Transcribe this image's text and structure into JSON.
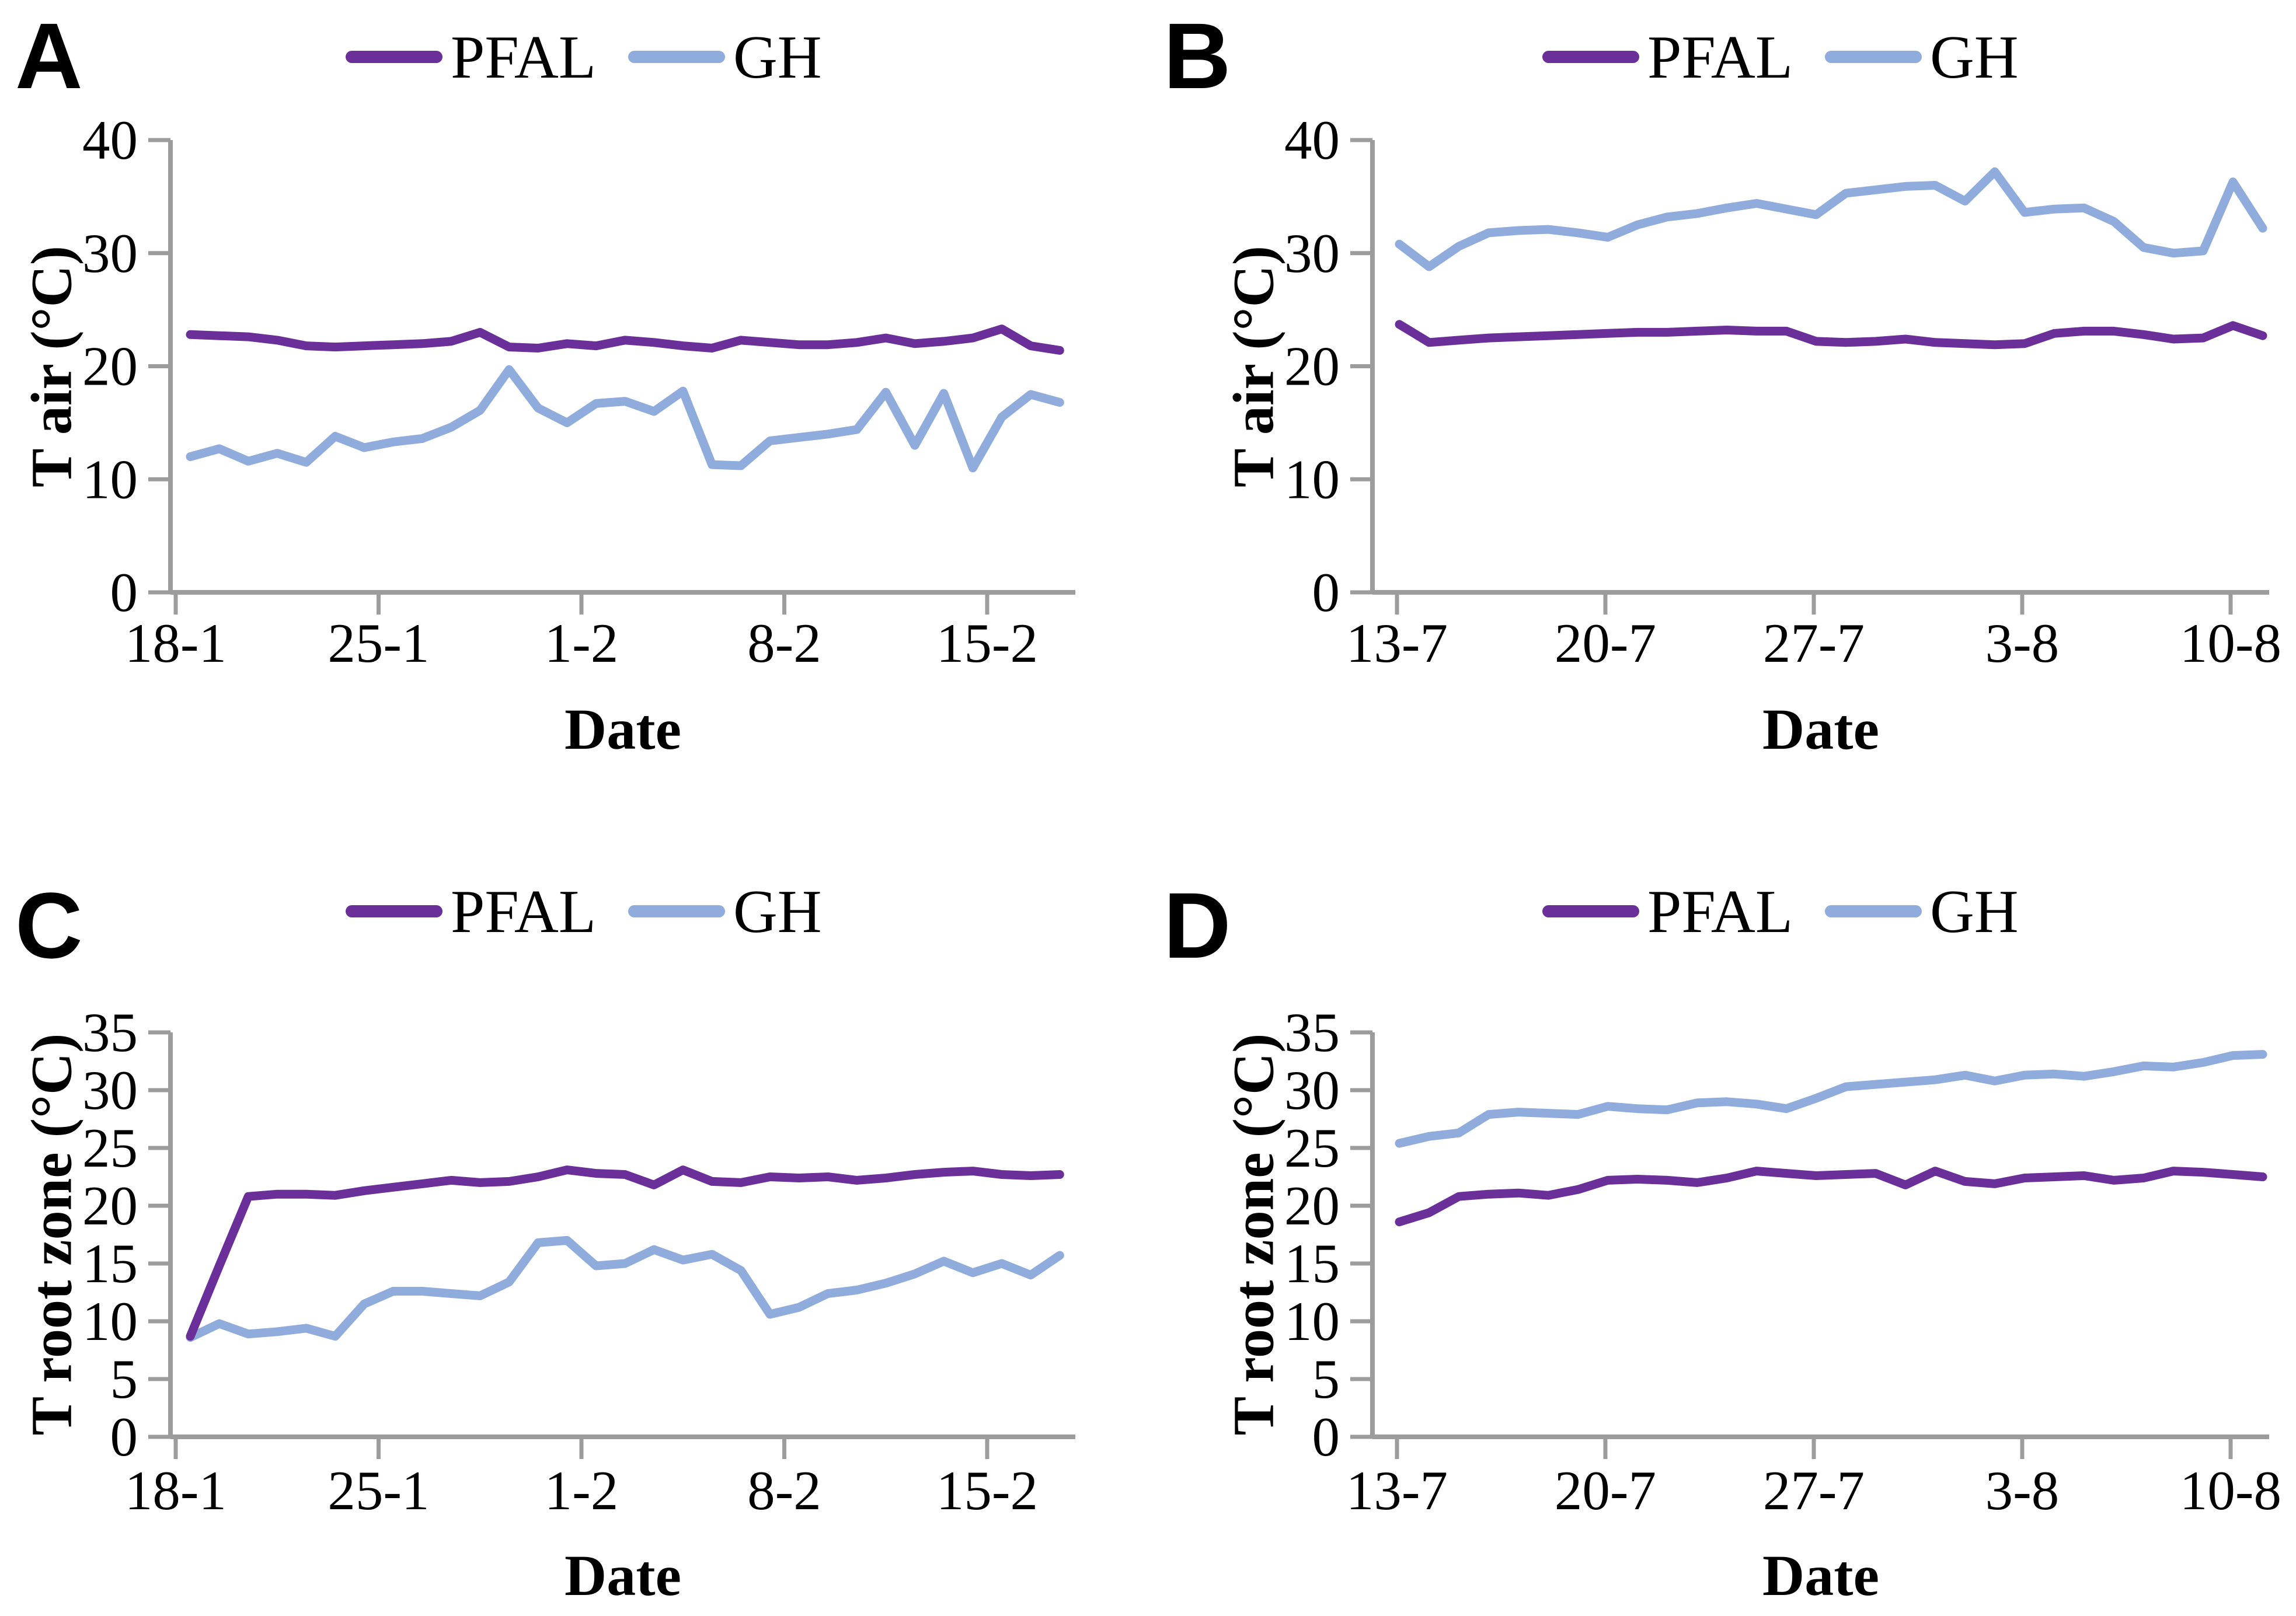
{
  "figure": {
    "axis_color": "#9C9C9C",
    "series_colors": {
      "PFAL": "#6B2F9A",
      "GH": "#8FACDC"
    },
    "panels": [
      {
        "letter": "A",
        "chart_index": 0
      },
      {
        "letter": "B",
        "chart_index": 1
      },
      {
        "letter": "C",
        "chart_index": 2
      },
      {
        "letter": "D",
        "chart_index": 3
      }
    ]
  },
  "chart_data": [
    {
      "type": "line",
      "panel": "A",
      "xlabel": "Date",
      "ylabel": "T air (°C)",
      "ylim": [
        0,
        40
      ],
      "y_ticks": [
        0,
        10,
        20,
        30,
        40
      ],
      "x_tick_labels": [
        "18-1",
        "25-1",
        "1-2",
        "8-2",
        "15-2"
      ],
      "x_tick_indices": [
        0,
        7,
        14,
        21,
        28
      ],
      "grid": false,
      "legend_position": "top",
      "series": [
        {
          "name": "PFAL",
          "color": "#6B2F9A",
          "values": [
            22.8,
            22.7,
            22.6,
            22.3,
            21.8,
            21.7,
            21.8,
            21.9,
            22.0,
            22.2,
            23.0,
            21.7,
            21.6,
            22.0,
            21.8,
            22.3,
            22.1,
            21.8,
            21.6,
            22.3,
            22.1,
            21.9,
            21.9,
            22.1,
            22.5,
            22.0,
            22.2,
            22.5,
            23.3,
            21.8,
            21.4
          ]
        },
        {
          "name": "GH",
          "color": "#8FACDC",
          "values": [
            12.0,
            12.7,
            11.6,
            12.3,
            11.5,
            13.8,
            12.8,
            13.3,
            13.6,
            14.6,
            16.1,
            19.7,
            16.3,
            15.0,
            16.7,
            16.9,
            16.0,
            17.8,
            11.3,
            11.2,
            13.4,
            13.7,
            14.0,
            14.4,
            17.7,
            13.0,
            17.6,
            11.0,
            15.5,
            17.5,
            16.8
          ]
        }
      ]
    },
    {
      "type": "line",
      "panel": "B",
      "xlabel": "Date",
      "ylabel": "T air (°C)",
      "ylim": [
        0,
        40
      ],
      "y_ticks": [
        0,
        10,
        20,
        30,
        40
      ],
      "x_tick_labels": [
        "13-7",
        "20-7",
        "27-7",
        "3-8",
        "10-8"
      ],
      "x_tick_indices": [
        0,
        7,
        14,
        21,
        28
      ],
      "grid": false,
      "legend_position": "top",
      "series": [
        {
          "name": "PFAL",
          "color": "#6B2F9A",
          "values": [
            23.7,
            22.1,
            22.3,
            22.5,
            22.6,
            22.7,
            22.8,
            22.9,
            23.0,
            23.0,
            23.1,
            23.2,
            23.1,
            23.1,
            22.2,
            22.1,
            22.2,
            22.4,
            22.1,
            22.0,
            21.9,
            22.0,
            22.9,
            23.1,
            23.1,
            22.8,
            22.4,
            22.5,
            23.6,
            22.7
          ]
        },
        {
          "name": "GH",
          "color": "#8FACDC",
          "values": [
            30.8,
            28.8,
            30.6,
            31.8,
            32.0,
            32.1,
            31.8,
            31.4,
            32.5,
            33.2,
            33.5,
            34.0,
            34.4,
            33.9,
            33.4,
            35.3,
            35.6,
            35.9,
            36.0,
            34.6,
            37.2,
            33.6,
            33.9,
            34.0,
            32.8,
            30.5,
            30.0,
            30.2,
            36.3,
            32.2
          ]
        }
      ]
    },
    {
      "type": "line",
      "panel": "C",
      "xlabel": "Date",
      "ylabel": "T root zone (°C)",
      "ylim": [
        0,
        35
      ],
      "y_ticks": [
        0,
        5,
        10,
        15,
        20,
        25,
        30,
        35
      ],
      "x_tick_labels": [
        "18-1",
        "25-1",
        "1-2",
        "8-2",
        "15-2"
      ],
      "x_tick_indices": [
        0,
        7,
        14,
        21,
        28
      ],
      "grid": false,
      "legend_position": "top",
      "series": [
        {
          "name": "PFAL",
          "color": "#6B2F9A",
          "values": [
            8.7,
            14.8,
            20.8,
            21.0,
            21.0,
            20.9,
            21.3,
            21.6,
            21.9,
            22.2,
            22.0,
            22.1,
            22.5,
            23.1,
            22.8,
            22.7,
            21.8,
            23.1,
            22.1,
            22.0,
            22.5,
            22.4,
            22.5,
            22.2,
            22.4,
            22.7,
            22.9,
            23.0,
            22.7,
            22.6,
            22.7
          ]
        },
        {
          "name": "GH",
          "color": "#8FACDC",
          "values": [
            8.6,
            9.8,
            8.9,
            9.1,
            9.4,
            8.7,
            11.5,
            12.6,
            12.6,
            12.4,
            12.2,
            13.4,
            16.8,
            17.0,
            14.8,
            15.0,
            16.2,
            15.3,
            15.8,
            14.4,
            10.6,
            11.2,
            12.4,
            12.7,
            13.3,
            14.1,
            15.2,
            14.2,
            15.0,
            14.0,
            15.7
          ]
        }
      ]
    },
    {
      "type": "line",
      "panel": "D",
      "xlabel": "Date",
      "ylabel": "T root zone (°C)",
      "ylim": [
        0,
        35
      ],
      "y_ticks": [
        0,
        5,
        10,
        15,
        20,
        25,
        30,
        35
      ],
      "x_tick_labels": [
        "13-7",
        "20-7",
        "27-7",
        "3-8",
        "10-8"
      ],
      "x_tick_indices": [
        0,
        7,
        14,
        21,
        28
      ],
      "grid": false,
      "legend_position": "top",
      "series": [
        {
          "name": "PFAL",
          "color": "#6B2F9A",
          "values": [
            18.6,
            19.4,
            20.8,
            21.0,
            21.1,
            20.9,
            21.4,
            22.2,
            22.3,
            22.2,
            22.0,
            22.4,
            23.0,
            22.8,
            22.6,
            22.7,
            22.8,
            21.8,
            23.0,
            22.1,
            21.9,
            22.4,
            22.5,
            22.6,
            22.2,
            22.4,
            23.0,
            22.9,
            22.7,
            22.5
          ]
        },
        {
          "name": "GH",
          "color": "#8FACDC",
          "values": [
            25.4,
            26.0,
            26.3,
            27.9,
            28.1,
            28.0,
            27.9,
            28.6,
            28.4,
            28.3,
            28.9,
            29.0,
            28.8,
            28.4,
            29.3,
            30.3,
            30.5,
            30.7,
            30.9,
            31.3,
            30.8,
            31.3,
            31.4,
            31.2,
            31.6,
            32.1,
            32.0,
            32.4,
            33.0,
            33.1
          ]
        }
      ]
    }
  ]
}
